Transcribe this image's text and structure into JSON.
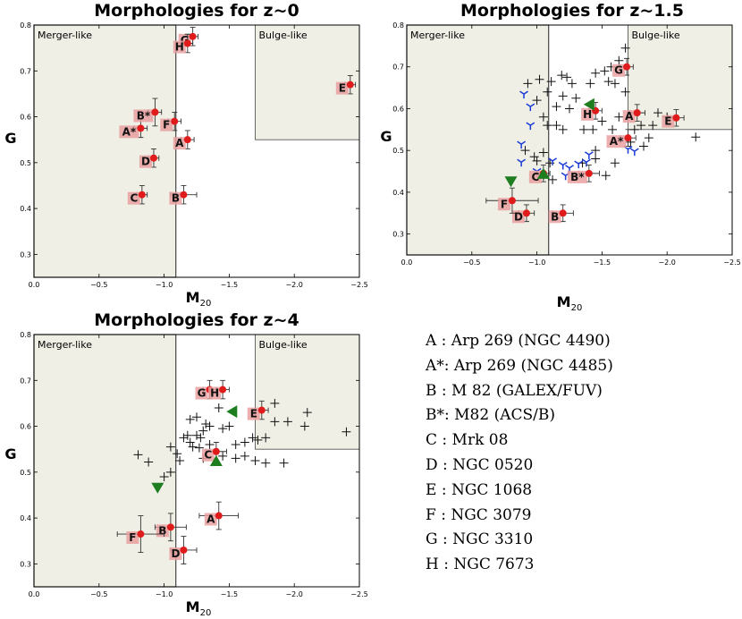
{
  "chart_data": [
    {
      "type": "scatter",
      "title": "Morphologies for z~0",
      "xlabel": "M",
      "xlabel_sub": "20",
      "ylabel": "G",
      "xlim": [
        0.0,
        -2.5
      ],
      "ylim": [
        0.25,
        0.8
      ],
      "xticks": [
        "0.0",
        "−0.5",
        "−1.0",
        "−1.5",
        "−2.0",
        "−2.5"
      ],
      "yticks": [
        "0.3",
        "0.4",
        "0.5",
        "0.6",
        "0.7",
        "0.8"
      ],
      "regions": [
        {
          "label": "Merger-like",
          "x_range": [
            0.0,
            -1.09
          ],
          "y_range": [
            0.25,
            0.8
          ]
        },
        {
          "label": "Bulge-like",
          "x_range": [
            -1.7,
            -2.5
          ],
          "y_range": [
            0.55,
            0.8
          ]
        }
      ],
      "labeled_points": [
        {
          "label": "A",
          "m20": -1.18,
          "g": 0.55,
          "xerr": 0.05,
          "yerr": 0.02
        },
        {
          "label": "A*",
          "m20": -0.82,
          "g": 0.575,
          "xerr": 0.05,
          "yerr": 0.02
        },
        {
          "label": "B",
          "m20": -1.15,
          "g": 0.43,
          "xerr": 0.1,
          "yerr": 0.02
        },
        {
          "label": "B*",
          "m20": -0.93,
          "g": 0.61,
          "xerr": 0.05,
          "yerr": 0.03
        },
        {
          "label": "C",
          "m20": -0.83,
          "g": 0.43,
          "xerr": 0.04,
          "yerr": 0.02
        },
        {
          "label": "D",
          "m20": -0.92,
          "g": 0.51,
          "xerr": 0.04,
          "yerr": 0.02
        },
        {
          "label": "E",
          "m20": -2.43,
          "g": 0.67,
          "xerr": 0.04,
          "yerr": 0.02
        },
        {
          "label": "F",
          "m20": -1.08,
          "g": 0.59,
          "xerr": 0.05,
          "yerr": 0.02
        },
        {
          "label": "G",
          "m20": -1.22,
          "g": 0.775,
          "xerr": 0.04,
          "yerr": 0.02
        },
        {
          "label": "H",
          "m20": -1.18,
          "g": 0.76,
          "xerr": 0.04,
          "yerr": 0.02
        }
      ],
      "crosses": [],
      "blue_markers": [],
      "green_triangles_down": [],
      "green_triangles_up": [],
      "green_triangles_left": []
    },
    {
      "type": "scatter",
      "title": "Morphologies for z~1.5",
      "xlabel": "M",
      "xlabel_sub": "20",
      "ylabel": "G",
      "xlim": [
        0.0,
        -2.5
      ],
      "ylim": [
        0.25,
        0.8
      ],
      "xticks": [
        "0.0",
        "−0.5",
        "−1.0",
        "−1.5",
        "−2.0",
        "−2.5"
      ],
      "yticks": [
        "0.3",
        "0.4",
        "0.5",
        "0.6",
        "0.7",
        "0.8"
      ],
      "regions": [
        {
          "label": "Merger-like",
          "x_range": [
            0.0,
            -1.09
          ],
          "y_range": [
            0.25,
            0.8
          ]
        },
        {
          "label": "Bulge-like",
          "x_range": [
            -1.7,
            -2.5
          ],
          "y_range": [
            0.55,
            0.8
          ]
        }
      ],
      "labeled_points": [
        {
          "label": "A",
          "m20": -1.77,
          "g": 0.59,
          "xerr": 0.06,
          "yerr": 0.02
        },
        {
          "label": "A*",
          "m20": -1.7,
          "g": 0.53,
          "xerr": 0.06,
          "yerr": 0.02
        },
        {
          "label": "B",
          "m20": -1.2,
          "g": 0.35,
          "xerr": 0.08,
          "yerr": 0.02
        },
        {
          "label": "B*",
          "m20": -1.4,
          "g": 0.445,
          "xerr": 0.08,
          "yerr": 0.02
        },
        {
          "label": "C",
          "m20": -1.05,
          "g": 0.445,
          "xerr": 0.05,
          "yerr": 0.02
        },
        {
          "label": "D",
          "m20": -0.92,
          "g": 0.35,
          "xerr": 0.06,
          "yerr": 0.02
        },
        {
          "label": "E",
          "m20": -2.07,
          "g": 0.578,
          "xerr": 0.06,
          "yerr": 0.02
        },
        {
          "label": "F",
          "m20": -0.81,
          "g": 0.38,
          "xerr": 0.2,
          "yerr": 0.03
        },
        {
          "label": "G",
          "m20": -1.69,
          "g": 0.7,
          "xerr": 0.05,
          "yerr": 0.02
        },
        {
          "label": "H",
          "m20": -1.45,
          "g": 0.595,
          "xerr": 0.05,
          "yerr": 0.02
        }
      ],
      "crosses": [
        [
          -0.93,
          0.66
        ],
        [
          -1.02,
          0.67
        ],
        [
          -1.11,
          0.665
        ],
        [
          -1.19,
          0.68
        ],
        [
          -1.23,
          0.675
        ],
        [
          -1.0,
          0.62
        ],
        [
          -1.08,
          0.64
        ],
        [
          -1.15,
          0.605
        ],
        [
          -1.2,
          0.63
        ],
        [
          -1.3,
          0.625
        ],
        [
          -1.27,
          0.66
        ],
        [
          -1.41,
          0.66
        ],
        [
          -1.45,
          0.685
        ],
        [
          -1.52,
          0.69
        ],
        [
          -1.57,
          0.7
        ],
        [
          -1.63,
          0.715
        ],
        [
          -1.68,
          0.745
        ],
        [
          -1.55,
          0.665
        ],
        [
          -1.6,
          0.66
        ],
        [
          -1.68,
          0.64
        ],
        [
          -1.05,
          0.58
        ],
        [
          -1.08,
          0.56
        ],
        [
          -1.15,
          0.56
        ],
        [
          -1.2,
          0.55
        ],
        [
          -1.25,
          0.6
        ],
        [
          -1.36,
          0.55
        ],
        [
          -1.43,
          0.55
        ],
        [
          -1.5,
          0.57
        ],
        [
          -1.58,
          0.55
        ],
        [
          -1.63,
          0.58
        ],
        [
          -1.89,
          0.56
        ],
        [
          -1.93,
          0.59
        ],
        [
          -2.0,
          0.58
        ],
        [
          -2.22,
          0.532
        ],
        [
          -1.75,
          0.55
        ],
        [
          -1.8,
          0.56
        ],
        [
          -1.86,
          0.53
        ],
        [
          -1.72,
          0.52
        ],
        [
          -1.82,
          0.51
        ],
        [
          -0.91,
          0.5
        ],
        [
          -0.98,
          0.485
        ],
        [
          -1.0,
          0.475
        ],
        [
          -1.05,
          0.495
        ],
        [
          -1.1,
          0.47
        ],
        [
          -1.05,
          0.44
        ],
        [
          -1.12,
          0.43
        ],
        [
          -1.35,
          0.47
        ],
        [
          -1.45,
          0.48
        ],
        [
          -1.53,
          0.44
        ],
        [
          -1.45,
          0.5
        ],
        [
          -1.6,
          0.47
        ]
      ],
      "blue_markers": [
        [
          -0.9,
          0.635
        ],
        [
          -0.95,
          0.605
        ],
        [
          -0.95,
          0.56
        ],
        [
          -0.88,
          0.515
        ],
        [
          -0.88,
          0.472
        ],
        [
          -1.2,
          0.465
        ],
        [
          -1.22,
          0.44
        ],
        [
          -1.25,
          0.458
        ],
        [
          -1.32,
          0.468
        ],
        [
          -1.38,
          0.472
        ],
        [
          -1.7,
          0.503
        ],
        [
          -1.75,
          0.498
        ],
        [
          -1.4,
          0.49
        ],
        [
          -1.12,
          0.475
        ],
        [
          -1.0,
          0.45
        ]
      ],
      "green_triangles_down": [
        [
          -0.8,
          0.425
        ]
      ],
      "green_triangles_up": [
        [
          -1.05,
          0.445
        ]
      ],
      "green_triangles_left": [
        [
          -1.4,
          0.61
        ]
      ]
    },
    {
      "type": "scatter",
      "title": "Morphologies for z~4",
      "xlabel": "M",
      "xlabel_sub": "20",
      "ylabel": "G",
      "xlim": [
        0.0,
        -2.5
      ],
      "ylim": [
        0.25,
        0.8
      ],
      "xticks": [
        "0.0",
        "−0.5",
        "−1.0",
        "−1.5",
        "−2.0",
        "−2.5"
      ],
      "yticks": [
        "0.3",
        "0.4",
        "0.5",
        "0.6",
        "0.7",
        "0.8"
      ],
      "regions": [
        {
          "label": "Merger-like",
          "x_range": [
            0.0,
            -1.09
          ],
          "y_range": [
            0.25,
            0.8
          ]
        },
        {
          "label": "Bulge-like",
          "x_range": [
            -1.7,
            -2.5
          ],
          "y_range": [
            0.55,
            0.8
          ]
        }
      ],
      "labeled_points": [
        {
          "label": "A",
          "m20": -1.42,
          "g": 0.405,
          "xerr": 0.15,
          "yerr": 0.03
        },
        {
          "label": "B",
          "m20": -1.05,
          "g": 0.38,
          "xerr": 0.12,
          "yerr": 0.03
        },
        {
          "label": "C",
          "m20": -1.4,
          "g": 0.545,
          "xerr": 0.08,
          "yerr": 0.02
        },
        {
          "label": "D",
          "m20": -1.15,
          "g": 0.33,
          "xerr": 0.1,
          "yerr": 0.03
        },
        {
          "label": "E",
          "m20": -1.75,
          "g": 0.635,
          "xerr": 0.05,
          "yerr": 0.02
        },
        {
          "label": "F",
          "m20": -0.82,
          "g": 0.365,
          "xerr": 0.18,
          "yerr": 0.04
        },
        {
          "label": "G",
          "m20": -1.35,
          "g": 0.68,
          "xerr": 0.05,
          "yerr": 0.02
        },
        {
          "label": "H",
          "m20": -1.45,
          "g": 0.68,
          "xerr": 0.05,
          "yerr": 0.02
        }
      ],
      "crosses": [
        [
          -0.8,
          0.538
        ],
        [
          -0.88,
          0.522
        ],
        [
          -1.2,
          0.615
        ],
        [
          -1.25,
          0.62
        ],
        [
          -1.32,
          0.605
        ],
        [
          -1.25,
          0.58
        ],
        [
          -1.3,
          0.59
        ],
        [
          -1.35,
          0.6
        ],
        [
          -1.45,
          0.595
        ],
        [
          -1.5,
          0.6
        ],
        [
          -1.55,
          0.56
        ],
        [
          -1.62,
          0.565
        ],
        [
          -1.68,
          0.575
        ],
        [
          -1.72,
          0.57
        ],
        [
          -1.78,
          0.575
        ],
        [
          -1.85,
          0.61
        ],
        [
          -1.95,
          0.61
        ],
        [
          -1.85,
          0.65
        ],
        [
          -2.1,
          0.63
        ],
        [
          -2.08,
          0.6
        ],
        [
          -2.4,
          0.588
        ],
        [
          -1.15,
          0.575
        ],
        [
          -1.2,
          0.565
        ],
        [
          -1.27,
          0.553
        ],
        [
          -1.05,
          0.555
        ],
        [
          -1.1,
          0.54
        ],
        [
          -1.3,
          0.53
        ],
        [
          -1.45,
          0.535
        ],
        [
          -1.55,
          0.53
        ],
        [
          -1.62,
          0.535
        ],
        [
          -1.7,
          0.525
        ],
        [
          -1.78,
          0.52
        ],
        [
          -1.92,
          0.52
        ],
        [
          -1.05,
          0.5
        ],
        [
          -1.18,
          0.58
        ],
        [
          -1.22,
          0.555
        ],
        [
          -1.42,
          0.64
        ],
        [
          -1.12,
          0.525
        ],
        [
          -1.28,
          0.575
        ],
        [
          -1.35,
          0.56
        ],
        [
          -1.0,
          0.49
        ]
      ],
      "blue_markers": [],
      "green_triangles_down": [
        [
          -0.95,
          0.465
        ]
      ],
      "green_triangles_up": [
        [
          -1.4,
          0.525
        ]
      ],
      "green_triangles_left": [
        [
          -1.52,
          0.632
        ]
      ]
    }
  ],
  "legend": [
    "A : Arp 269 (NGC 4490)",
    "A*: Arp 269 (NGC 4485)",
    "B : M 82 (GALEX/FUV)",
    "B*: M82 (ACS/B)",
    "C : Mrk 08",
    "D : NGC 0520",
    "E : NGC 1068",
    "F : NGC 3079",
    "G : NGC 3310",
    "H : NGC 7673"
  ],
  "colors": {
    "region_fill": "#efefe6",
    "labeled_point": "#e01b1b",
    "label_box": "#e9a0a0",
    "cross": "#111111",
    "blue_marker": "#1a3bd6",
    "green_triangle": "#1e7d1e"
  }
}
